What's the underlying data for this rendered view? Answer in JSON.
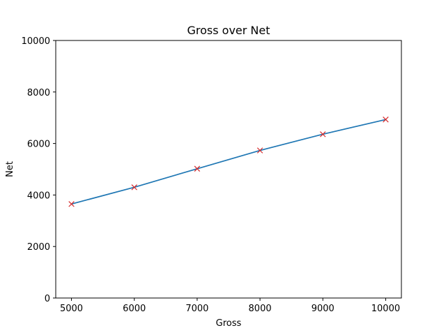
{
  "chart_data": {
    "type": "line",
    "title": "Gross over Net",
    "xlabel": "Gross",
    "ylabel": "Net",
    "xlim": [
      4750,
      10250
    ],
    "ylim": [
      0,
      10000
    ],
    "xticks": [
      5000,
      6000,
      7000,
      8000,
      9000,
      10000
    ],
    "yticks": [
      0,
      2000,
      4000,
      6000,
      8000,
      10000
    ],
    "grid": false,
    "series": [
      {
        "x": [
          5000,
          6000,
          7000,
          8000,
          9000,
          10000
        ],
        "y": [
          3650,
          4300,
          5020,
          5730,
          6360,
          6930
        ],
        "line_color": "#1f77b4",
        "marker": "x",
        "marker_color": "#d62728"
      }
    ]
  }
}
